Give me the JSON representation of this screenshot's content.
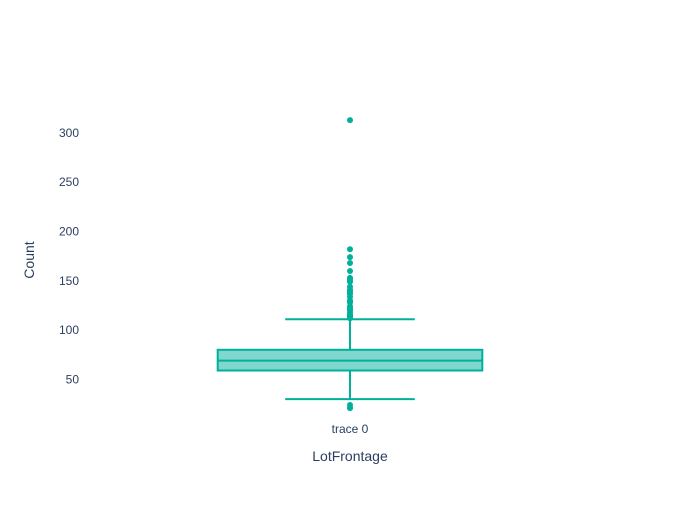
{
  "chart_data": {
    "type": "box",
    "title": "",
    "xlabel": "LotFrontage",
    "ylabel": "Count",
    "categories": [
      "trace 0"
    ],
    "ylim": [
      8.8,
      333.4
    ],
    "yticks": [
      50,
      100,
      150,
      200,
      250,
      300
    ],
    "grid": false,
    "series": [
      {
        "category": "trace 0",
        "box": {
          "lowerfence": 30,
          "q1": 59,
          "median": 69,
          "q3": 80,
          "upperfence": 111
        },
        "outliers": [
          21,
          21,
          24,
          112,
          113,
          114,
          115,
          116,
          118,
          120,
          121,
          122,
          124,
          128,
          129,
          130,
          134,
          137,
          138,
          140,
          141,
          144,
          149,
          150,
          152,
          153,
          160,
          168,
          174,
          182,
          313
        ]
      }
    ],
    "colors": {
      "line": "#00b09b",
      "fill": "rgba(0,176,155,0.5)",
      "text": "#2a3f5f"
    }
  }
}
